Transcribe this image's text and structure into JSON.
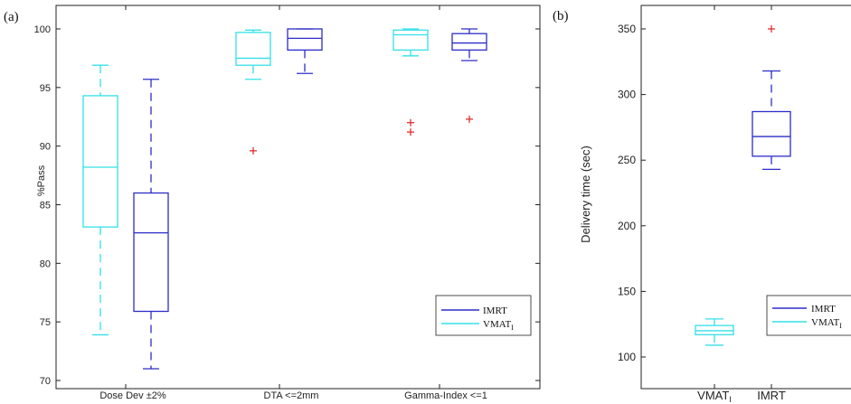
{
  "colors": {
    "imrt": "#2d2dc8",
    "vmat": "#33e0e8",
    "outlier": "#e02020",
    "axis": "#222222"
  },
  "chart_data": [
    {
      "type": "box",
      "panel_label": "(a)",
      "ylabel": "%Pass",
      "ylim": [
        69.5,
        100.5
      ],
      "yticks": [
        70,
        75,
        80,
        85,
        90,
        95,
        100
      ],
      "categories": [
        "Dose Dev ±2%",
        "DTA <=2mm",
        "Gamma-Index <=1"
      ],
      "legend": {
        "placement": "bottom-right",
        "entries": [
          {
            "label": "IMRT",
            "series": "IMRT"
          },
          {
            "label": "VMAT",
            "sub": "I",
            "series": "VMAT"
          }
        ]
      },
      "series": [
        {
          "name": "VMAT",
          "boxes": [
            {
              "min": 73.9,
              "q1": 83.1,
              "median": 88.2,
              "q3": 94.3,
              "max": 96.9,
              "outliers": []
            },
            {
              "min": 95.7,
              "q1": 96.9,
              "median": 97.5,
              "q3": 99.7,
              "max": 99.9,
              "outliers": [
                89.6
              ]
            },
            {
              "min": 97.7,
              "q1": 98.2,
              "median": 99.5,
              "q3": 99.9,
              "max": 100.0,
              "outliers": [
                92.0,
                91.2
              ]
            }
          ]
        },
        {
          "name": "IMRT",
          "boxes": [
            {
              "min": 71.0,
              "q1": 75.9,
              "median": 82.6,
              "q3": 86.0,
              "max": 95.7,
              "outliers": []
            },
            {
              "min": 96.2,
              "q1": 98.2,
              "median": 99.2,
              "q3": 100.0,
              "max": 100.0,
              "outliers": []
            },
            {
              "min": 97.3,
              "q1": 98.2,
              "median": 98.8,
              "q3": 99.6,
              "max": 100.0,
              "outliers": [
                92.3
              ]
            }
          ]
        }
      ]
    },
    {
      "type": "box",
      "panel_label": "(b)",
      "ylabel": "Delivery time (sec)",
      "ylim": [
        90,
        362
      ],
      "yticks": [
        100,
        150,
        200,
        250,
        300,
        350
      ],
      "categories": [
        "VMAT",
        "IMRT"
      ],
      "category_subs": [
        "I",
        ""
      ],
      "legend": {
        "placement": "bottom-right",
        "entries": [
          {
            "label": "IMRT",
            "series": "IMRT"
          },
          {
            "label": "VMAT",
            "sub": "I",
            "series": "VMAT"
          }
        ]
      },
      "series": [
        {
          "name": "VMAT",
          "boxes": [
            {
              "min": 109,
              "q1": 117,
              "median": 120,
              "q3": 124,
              "max": 129,
              "outliers": []
            }
          ]
        },
        {
          "name": "IMRT",
          "boxes": [
            {
              "min": 243,
              "q1": 253,
              "median": 268,
              "q3": 287,
              "max": 318,
              "outliers": [
                350
              ]
            }
          ]
        }
      ]
    }
  ]
}
